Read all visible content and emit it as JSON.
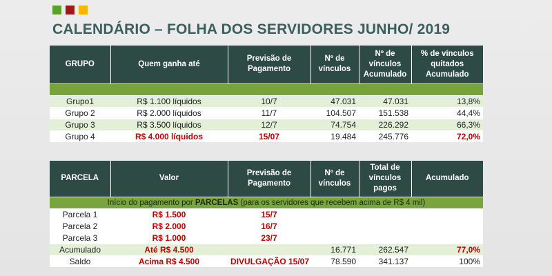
{
  "colors": {
    "header_bg": "#2e4a45",
    "green_band": "#78a33b",
    "row_light": "#e3efd6",
    "red": "#c00000",
    "title": "#3a5f5c",
    "squares": [
      "#5aa02c",
      "#a01818",
      "#f5b800"
    ]
  },
  "title": "CALENDÁRIO – FOLHA DOS SERVIDORES JUNHO/ 2019",
  "table1": {
    "headers": [
      "GRUPO",
      "Quem ganha até",
      "Previsão de Pagamento",
      "Nº  de vínculos",
      "Nº de vínculos Acumulado",
      "% de vínculos quitados Acumulado"
    ],
    "rows": [
      [
        "Grupo1",
        "R$ 1.100 líquidos",
        "10/7",
        "47.031",
        "47.031",
        "13,8%"
      ],
      [
        "Grupo 2",
        "R$ 2.000 líquidos",
        "11/7",
        "104.507",
        "151.538",
        "44,4%"
      ],
      [
        "Grupo 3",
        "R$ 3.500 líquidos",
        "12/7",
        "74.754",
        "226.292",
        "66,3%"
      ],
      [
        "Grupo 4",
        "R$ 4.000 líquidos",
        "15/07",
        "19.484",
        "245.776",
        "72,0%"
      ]
    ]
  },
  "table2": {
    "headers": [
      "PARCELA",
      "Valor",
      "Previsão de Pagamento",
      "Nº  de vínculos",
      "Total de vínculos pagos",
      "Acumulado"
    ],
    "info": {
      "before": "Início do pagamento por ",
      "bold": "PARCELAS",
      "after": " (para os servidores que recebem acima de R$ 4 mil)"
    },
    "rows": [
      [
        "Parcela 1",
        "R$ 1.500",
        "15/7",
        "",
        "",
        ""
      ],
      [
        "Parcela 2",
        "R$ 2.000",
        "16/7",
        "",
        "",
        ""
      ],
      [
        "Parcela 3",
        "R$ 1.000",
        "23/7",
        "",
        "",
        ""
      ],
      [
        "Acumulado",
        "Até R$ 4.500",
        "",
        "16.771",
        "262.547",
        "77,0%"
      ],
      [
        "Saldo",
        "Acima R$ 4.500",
        "DIVULGAÇÃO 15/07",
        "78.590",
        "341.137",
        "100%"
      ]
    ]
  }
}
